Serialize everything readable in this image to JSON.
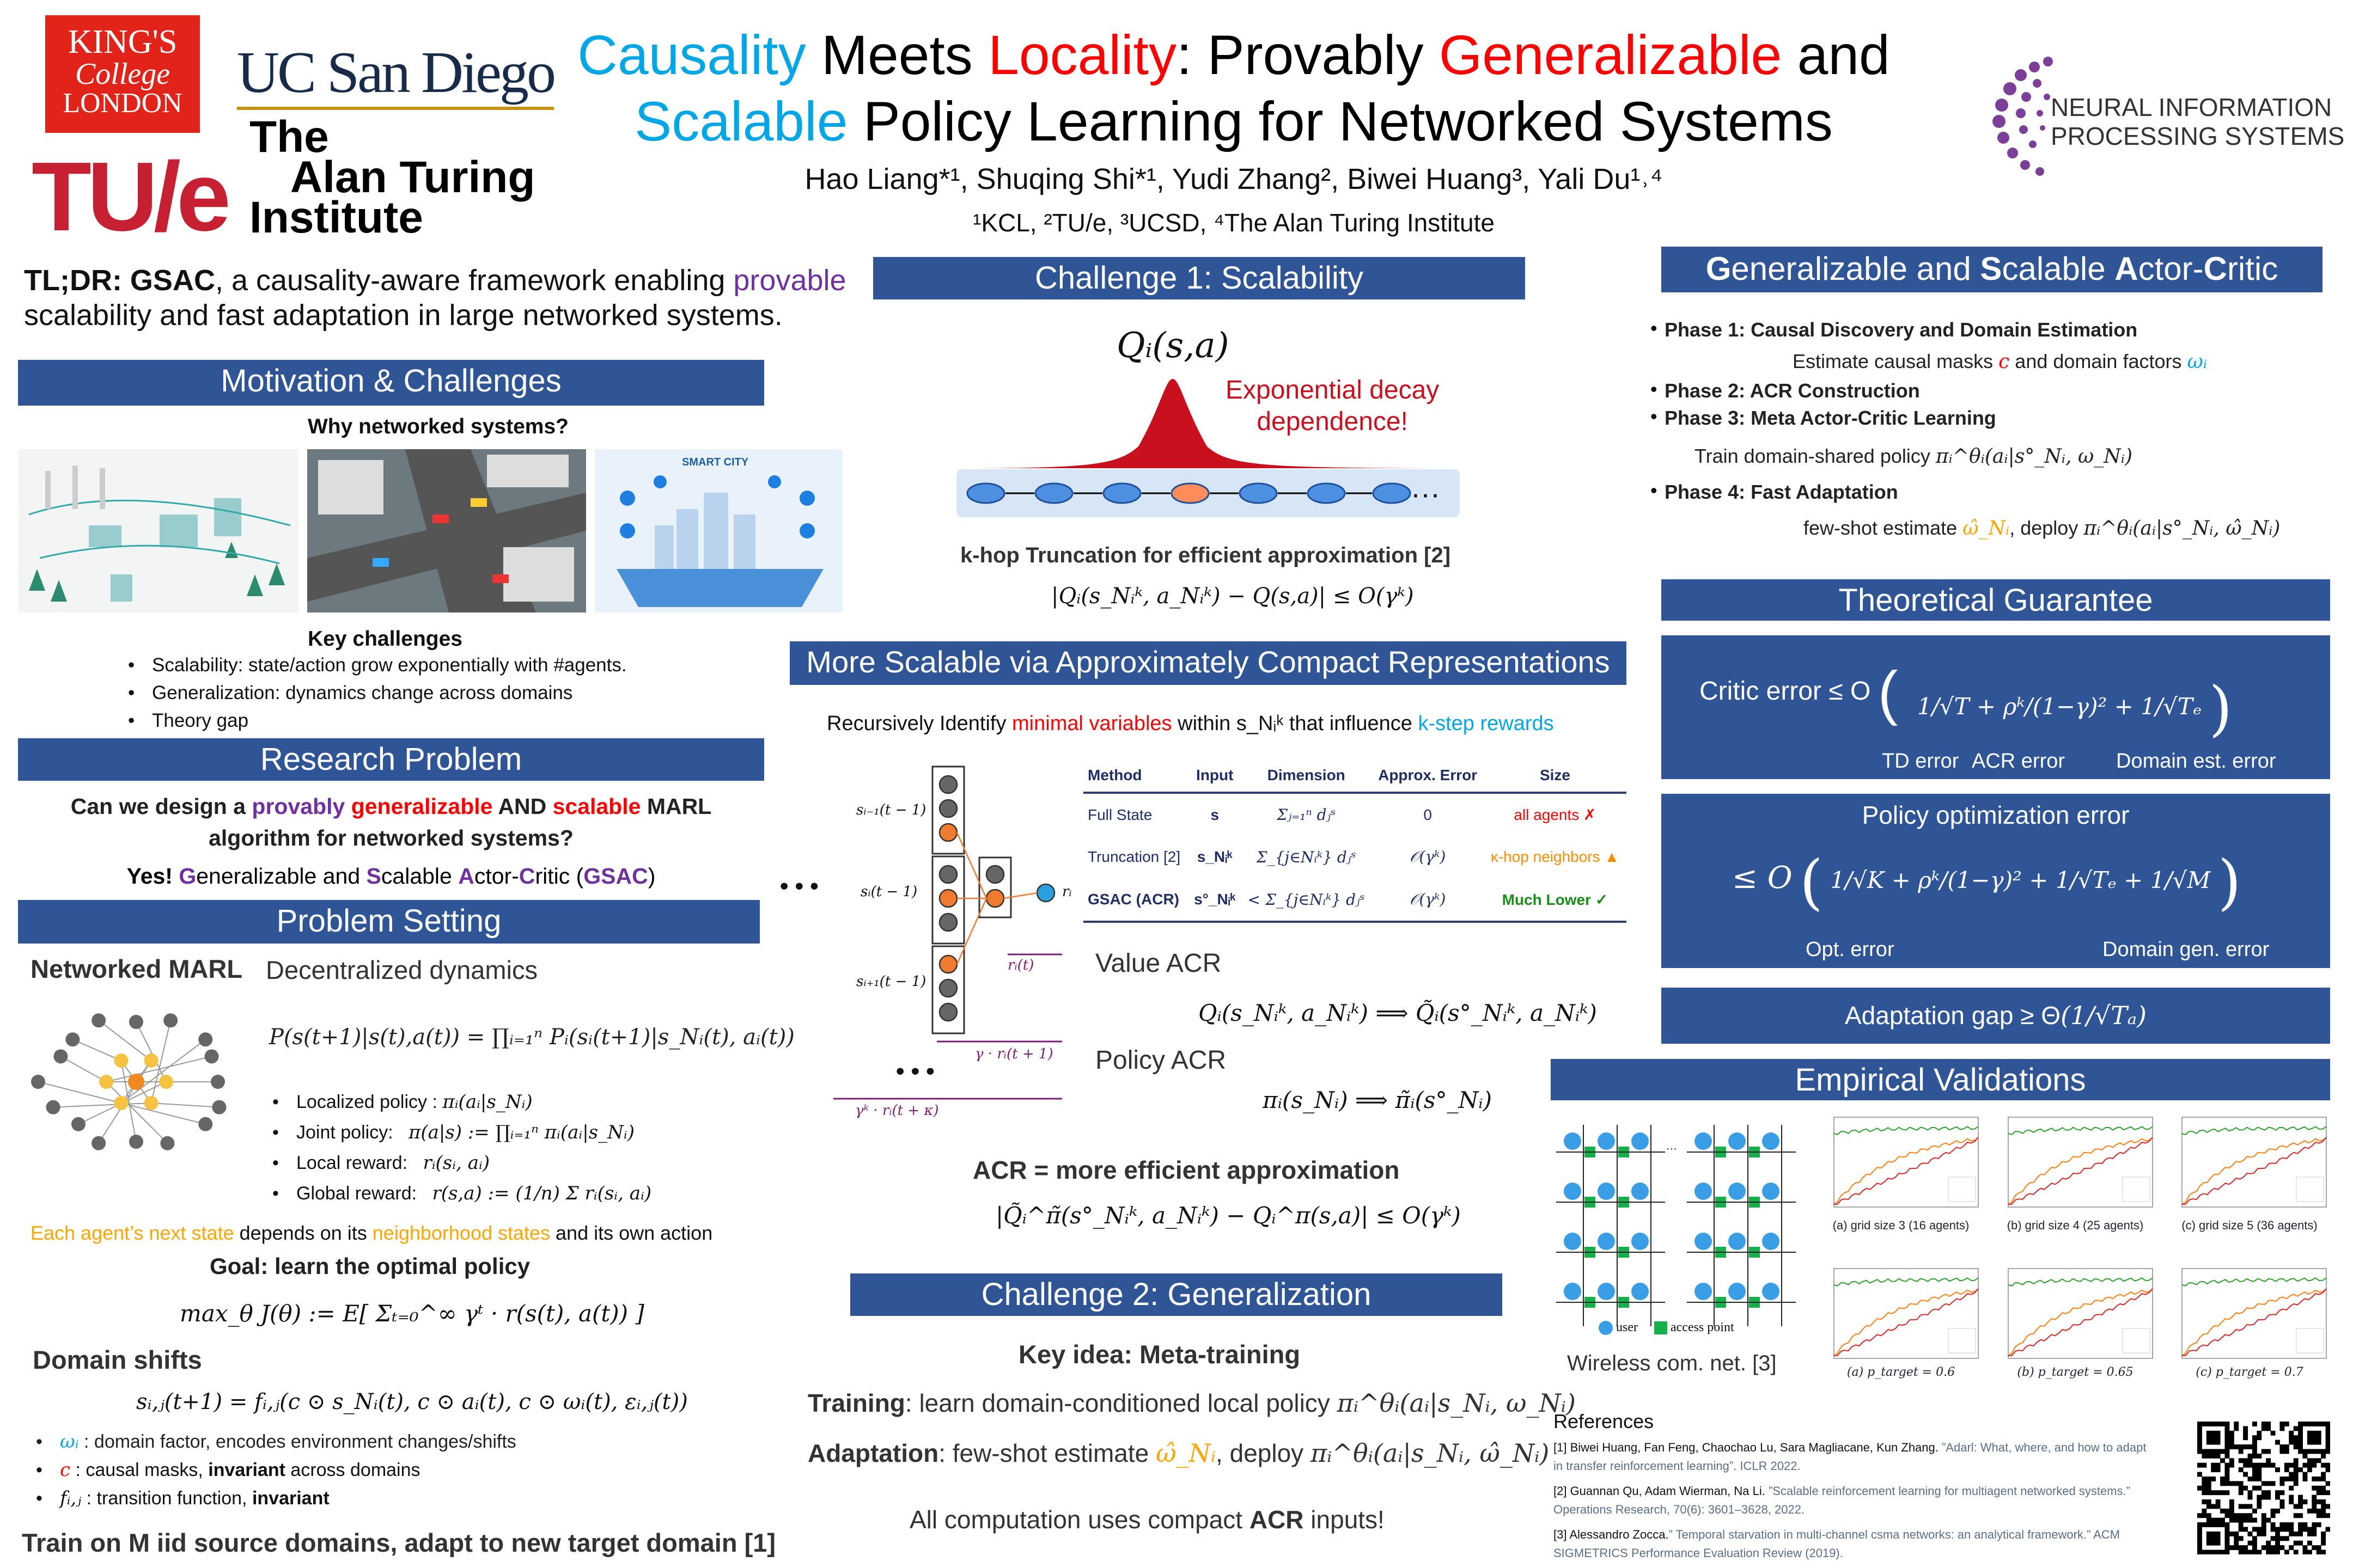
{
  "logos": {
    "kcl": [
      "KING'S",
      "College",
      "LONDON"
    ],
    "ucsd": "UC San Diego",
    "tue": "TU/e",
    "turing": [
      "The",
      "Alan Turing",
      "Institute"
    ],
    "neurips": [
      "NEURAL INFORMATION",
      "PROCESSING SYSTEMS"
    ]
  },
  "title": {
    "w1": "Causality",
    "w2": " Meets ",
    "w3": "Locality",
    "w4": ": Provably ",
    "w5": "Generalizable",
    "w6": " and",
    "w7": "Scalable",
    "w8": " Policy Learning for Networked Systems"
  },
  "authors": "Hao Liang*¹, Shuqing Shi*¹, Yudi Zhang², Biwei Huang³, Yali Du¹˒⁴",
  "affiliations": "¹KCL, ²TU/e, ³UCSD, ⁴The Alan Turing Institute",
  "tldr": {
    "lead": "TL;DR: GSAC",
    "text1": ", a causality-aware framework enabling ",
    "provable": "provable",
    "text2": "scalability and fast adaptation in large networked systems."
  },
  "motivation": {
    "header": "Motivation & Challenges",
    "why": "Why networked systems?",
    "image_labels": [
      "SMART CITY"
    ],
    "key": "Key challenges",
    "bullets": [
      "Scalability: state/action grow exponentially with #agents.",
      "Generalization:  dynamics change across domains",
      "Theory gap"
    ]
  },
  "research": {
    "header": "Research Problem",
    "q1": "Can we design a ",
    "q_prov": "provably ",
    "q_gen": "generalizable",
    "q_and": " AND ",
    "q_scal": "scalable",
    "q_marl": " MARL",
    "q2": "algorithm for networked systems?",
    "yes": "Yes! ",
    "G": "G",
    "eneralizable": "eneralizable and ",
    "S": "S",
    "calable": "calable ",
    "A": "A",
    "ctor": "ctor-",
    "C": "C",
    "ritic": "ritic (",
    "gsac": "GSAC",
    "close": ")"
  },
  "problem": {
    "header": "Problem Setting",
    "marl": "Networked MARL",
    "decentralized": "Decentralized dynamics",
    "dynamics": "P(s(t+1)|s(t),a(t)) = ∏ᵢ₌₁ⁿ Pᵢ(sᵢ(t+1)|s_Nᵢ(t), aᵢ(t))",
    "bullets": [
      {
        "label": "Localized policy :",
        "math": "πᵢ(aᵢ|s_Nᵢ)"
      },
      {
        "label": "Joint policy:",
        "math": "π(a|s) := ∏ᵢ₌₁ⁿ πᵢ(aᵢ|s_Nᵢ)"
      },
      {
        "label": "Local reward:",
        "math": "rᵢ(sᵢ, aᵢ)"
      },
      {
        "label": "Global reward:",
        "math": "r(s,a) := (1/n) Σ rᵢ(sᵢ, aᵢ)"
      }
    ],
    "each1": "Each agent’s next state",
    "each2": " depends on its ",
    "each3": "neighborhood states",
    "each4": " and its own action",
    "goal": "Goal:  learn the optimal policy",
    "objective": "max_θ J(θ) := E[ Σₜ₌₀^∞ γᵗ · r(s(t), a(t)) ]",
    "domain_shifts": "Domain shifts",
    "transition": "sᵢ,ⱼ(t+1) = fᵢ,ⱼ(c ⊙ s_Nᵢ(t), c ⊙ aᵢ(t), c ⊙ ωᵢ(t), εᵢ,ⱼ(t))",
    "shift_bullets": [
      {
        "sym": "ωᵢ",
        "text": " : domain factor, encodes environment changes/shifts"
      },
      {
        "sym": "c",
        "text": " : causal masks, ",
        "bold": "invariant",
        "tail": " across domains"
      },
      {
        "sym": "fᵢ,ⱼ",
        "text": " : transition function, ",
        "bold": "invariant",
        "tail": ""
      }
    ],
    "train": "Train on M iid source domains, adapt to new target domain [1]"
  },
  "challenge1": {
    "header": "Challenge 1: Scalability",
    "q": "Qᵢ(s,a)",
    "decay": [
      "Exponential decay",
      "dependence!"
    ],
    "ellipsis": "···",
    "khop": "k-hop Truncation for efficient approximation [2]",
    "bound": "|Qᵢ(s_Nᵢᵏ, a_Nᵢᵏ) − Q(s,a)| ≤ O(γᵏ)"
  },
  "compact": {
    "header": "More Scalable via Approximately Compact Representations",
    "rec1": "Recursively Identify ",
    "rec2": "minimal variables",
    "rec3": " within s_Nᵢᵏ that influence ",
    "rec4": "k-step rewards",
    "diagram": {
      "rows": [
        "sᵢ₋₁(t − 1)",
        "sᵢ(t − 1)",
        "sᵢ₊₁(t − 1)"
      ],
      "r": "rᵢ",
      "r_t": "rᵢ(t)",
      "r_t1": "γ · rᵢ(t + 1)",
      "r_tk": "γᵏ · rᵢ(t + κ)",
      "dots": "• • •"
    },
    "table": {
      "headers": [
        "Method",
        "Input",
        "Dimension",
        "Approx. Error",
        "Size"
      ],
      "rows": [
        [
          "Full State",
          "s",
          "Σⱼ₌₁ⁿ dⱼˢ",
          "0",
          "all agents ✗"
        ],
        [
          "Truncation [2]",
          "s_Nᵢᵏ",
          "Σ_{j∈Nᵢᵏ} dⱼˢ",
          "𝒪(γᵏ)",
          "κ-hop neighbors ▲"
        ],
        [
          "GSAC (ACR)",
          "s°_Nᵢᵏ",
          "< Σ_{j∈Nᵢᵏ} dⱼˢ",
          "𝒪(γᵏ)",
          "Much Lower ✓"
        ]
      ],
      "size_colors": [
        "#ff0000",
        "#ff8c00",
        "#1a8c1a"
      ]
    },
    "value_acr": "Value ACR",
    "value_formula": "Qᵢ(s_Nᵢᵏ, a_Nᵢᵏ) ⟹ Q̃ᵢ(s°_Nᵢᵏ, a_Nᵢᵏ)",
    "policy_acr": "Policy ACR",
    "policy_formula": "πᵢ(s_Nᵢ) ⟹ π̃ᵢ(s°_Nᵢ)",
    "acr_eff": "ACR = more efficient approximation",
    "acr_bound": "|Q̃ᵢ^π̃(s°_Nᵢᵏ, a_Nᵢᵏ) − Qᵢ^π(s,a)| ≤ O(γᵏ)"
  },
  "challenge2": {
    "header": "Challenge 2: Generalization",
    "key": "Key idea: Meta-training",
    "training_l": "Training",
    "training": ": learn domain-conditioned local policy ",
    "training_m": "πᵢ^θᵢ(aᵢ|s_Nᵢ, ω_Nᵢ)",
    "adapt_l": "Adaptation",
    "adapt": ": few-shot estimate ",
    "adapt_m1": "ω̂_Nᵢ",
    "adapt_mid": ", deploy ",
    "adapt_m2": "πᵢ^θᵢ(aᵢ|s_Nᵢ, ω̂_Nᵢ)",
    "all1": "All computation uses compact ",
    "all2": "ACR",
    "all3": " inputs!"
  },
  "gsac": {
    "header": "Generalizable and Scalable Actor-Critic",
    "h": [
      "G",
      "eneralizable and ",
      "S",
      "calable ",
      "A",
      "ctor-",
      "C",
      "ritic"
    ],
    "phase1": "Phase 1: Causal Discovery and Domain Estimation",
    "phase1_sub1": "Estimate causal masks ",
    "phase1_c": "c",
    "phase1_sub2": " and domain factors ",
    "phase1_w": "ωᵢ",
    "phase2": "Phase 2: ACR Construction",
    "phase3": "Phase 3: Meta Actor-Critic Learning",
    "phase3_sub": "Train domain-shared policy ",
    "phase3_m": "πᵢ^θᵢ(aᵢ|s°_Nᵢ, ω_Nᵢ)",
    "phase4": "Phase 4: Fast Adaptation",
    "phase4_sub1": "few-shot estimate ",
    "phase4_m1": "ω̂_Nᵢ",
    "phase4_sub2": ", deploy ",
    "phase4_m2": "πᵢ^θᵢ(aᵢ|s°_Nᵢ, ω̂_Nᵢ)"
  },
  "theory": {
    "header": "Theoretical Guarantee",
    "critic": "Critic error ≤ O",
    "critic_terms": [
      "1/√T",
      "ρᵏ/(1−γ)²",
      "1/√Tₑ"
    ],
    "critic_labels": [
      "TD error",
      "ACR error",
      "Domain est. error"
    ],
    "policy_title": "Policy optimization  error",
    "policy_terms": [
      "1/√K",
      "ρᵏ/(1−γ)²",
      "1/√Tₑ",
      "1/√M"
    ],
    "policy_labels": [
      "Opt. error",
      "Domain gen. error"
    ],
    "policy_le": "≤ O",
    "adapt": "Adaptation gap ≥ Θ",
    "adapt_term": "1/√Tₐ"
  },
  "empirical": {
    "header": "Empirical Validations",
    "legend": [
      "user",
      "access point"
    ],
    "wireless": "Wireless com. net. [3]",
    "captions_top": [
      "(a) grid size 3 (16 agents)",
      "(b) grid size 4 (25 agents)",
      "(c) grid size 5 (36 agents)"
    ],
    "captions_bottom": [
      "(a) p_target = 0.6",
      "(b) p_target = 0.65",
      "(c) p_target = 0.7"
    ]
  },
  "references": {
    "title": "References",
    "items": [
      {
        "authors": "[1] Biwei Huang, Fan Feng, Chaochao Lu, Sara Magliacane, Kun Zhang.",
        "title": " ”Adarl: What, where, and how to adapt in transfer reinforcement learning”. ICLR 2022."
      },
      {
        "authors": "[2] Guannan Qu, Adam Wierman, Na Li.",
        "title": " ”Scalable reinforcement learning for multiagent networked systems.” Operations Research, 70(6): 3601–3628, 2022."
      },
      {
        "authors": "[3] Alessandro Zocca.",
        "title": "” Temporal starvation in multi-channel csma networks: an analytical framework.” ACM SIGMETRICS Performance Evaluation Review (2019)."
      }
    ]
  },
  "colors": {
    "header": "#2f5597",
    "cyan": "#00a6e6",
    "red": "#ff0000",
    "purple": "#7030a0",
    "orange": "#ffa500"
  }
}
